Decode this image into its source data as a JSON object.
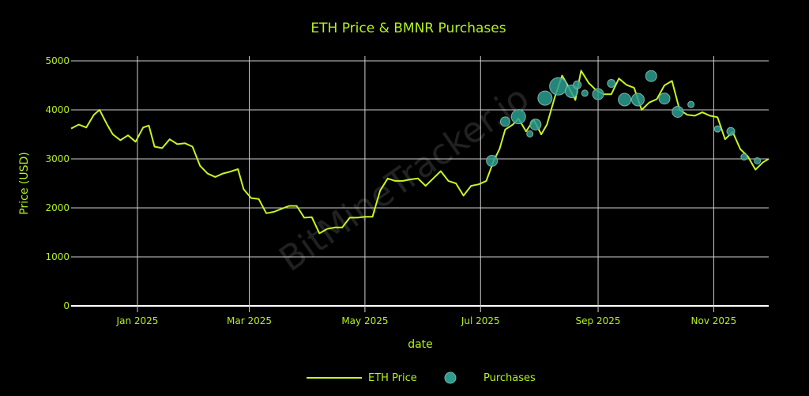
{
  "chart_data": {
    "type": "line",
    "title": "ETH Price & BMNR Purchases",
    "xlabel": "date",
    "ylabel": "Price (USD)",
    "ylim": [
      0,
      5000
    ],
    "yticks": [
      0,
      1000,
      2000,
      3000,
      4000,
      5000
    ],
    "xticks": [
      "Jan 2025",
      "Mar 2025",
      "May 2025",
      "Jul 2025",
      "Sep 2025",
      "Nov 2025"
    ],
    "x_range": [
      "2024-11-27",
      "2025-11-30"
    ],
    "grid": true,
    "legend_position": "bottom-center",
    "watermark": "BitMineTracker.io",
    "colors": {
      "background": "#000000",
      "line": "#c8f522",
      "text": "#b5f21a",
      "grid": "#d9d9d9",
      "bubble": "#2a9d8f"
    },
    "series": [
      {
        "name": "ETH Price",
        "kind": "line",
        "x": [
          "2024-11-27",
          "2024-12-01",
          "2024-12-05",
          "2024-12-09",
          "2024-12-12",
          "2024-12-16",
          "2024-12-19",
          "2024-12-23",
          "2024-12-27",
          "2024-12-31",
          "2025-01-04",
          "2025-01-07",
          "2025-01-10",
          "2025-01-14",
          "2025-01-18",
          "2025-01-22",
          "2025-01-26",
          "2025-01-30",
          "2025-02-03",
          "2025-02-07",
          "2025-02-11",
          "2025-02-15",
          "2025-02-19",
          "2025-02-23",
          "2025-02-26",
          "2025-03-02",
          "2025-03-06",
          "2025-03-10",
          "2025-03-14",
          "2025-03-18",
          "2025-03-22",
          "2025-03-26",
          "2025-03-30",
          "2025-04-03",
          "2025-04-07",
          "2025-04-11",
          "2025-04-15",
          "2025-04-19",
          "2025-04-23",
          "2025-04-27",
          "2025-05-01",
          "2025-05-05",
          "2025-05-09",
          "2025-05-13",
          "2025-05-17",
          "2025-05-21",
          "2025-05-25",
          "2025-05-29",
          "2025-06-02",
          "2025-06-06",
          "2025-06-10",
          "2025-06-14",
          "2025-06-18",
          "2025-06-22",
          "2025-06-26",
          "2025-06-30",
          "2025-07-04",
          "2025-07-08",
          "2025-07-11",
          "2025-07-14",
          "2025-07-18",
          "2025-07-21",
          "2025-07-25",
          "2025-07-29",
          "2025-08-02",
          "2025-08-05",
          "2025-08-09",
          "2025-08-13",
          "2025-08-16",
          "2025-08-20",
          "2025-08-23",
          "2025-08-27",
          "2025-08-31",
          "2025-09-04",
          "2025-09-08",
          "2025-09-12",
          "2025-09-16",
          "2025-09-20",
          "2025-09-24",
          "2025-09-28",
          "2025-10-02",
          "2025-10-06",
          "2025-10-10",
          "2025-10-14",
          "2025-10-18",
          "2025-10-22",
          "2025-10-26",
          "2025-10-30",
          "2025-11-03",
          "2025-11-07",
          "2025-11-11",
          "2025-11-15",
          "2025-11-19",
          "2025-11-23",
          "2025-11-27",
          "2025-11-30"
        ],
        "values": [
          3620,
          3700,
          3640,
          3900,
          4000,
          3700,
          3500,
          3380,
          3480,
          3350,
          3640,
          3680,
          3250,
          3220,
          3400,
          3300,
          3320,
          3250,
          2860,
          2700,
          2630,
          2700,
          2740,
          2790,
          2380,
          2200,
          2180,
          1890,
          1920,
          1980,
          2040,
          2040,
          1800,
          1810,
          1480,
          1570,
          1600,
          1600,
          1800,
          1800,
          1820,
          1820,
          2350,
          2600,
          2550,
          2550,
          2580,
          2600,
          2450,
          2600,
          2750,
          2550,
          2500,
          2250,
          2450,
          2480,
          2550,
          2970,
          3200,
          3600,
          3700,
          3820,
          3560,
          3800,
          3500,
          3700,
          4240,
          4700,
          4500,
          4200,
          4800,
          4550,
          4400,
          4320,
          4320,
          4640,
          4510,
          4450,
          4000,
          4150,
          4220,
          4500,
          4590,
          4000,
          3900,
          3880,
          3950,
          3880,
          3850,
          3400,
          3550,
          3200,
          3050,
          2780,
          2930,
          3000
        ]
      },
      {
        "name": "Purchases",
        "kind": "bubble",
        "points": [
          {
            "date": "2025-07-07",
            "price": 2960,
            "size": 7
          },
          {
            "date": "2025-07-14",
            "price": 3760,
            "size": 6
          },
          {
            "date": "2025-07-21",
            "price": 3860,
            "size": 9
          },
          {
            "date": "2025-07-27",
            "price": 3510,
            "size": 4
          },
          {
            "date": "2025-07-30",
            "price": 3700,
            "size": 7
          },
          {
            "date": "2025-08-04",
            "price": 4240,
            "size": 9
          },
          {
            "date": "2025-08-11",
            "price": 4480,
            "size": 11
          },
          {
            "date": "2025-08-18",
            "price": 4380,
            "size": 8
          },
          {
            "date": "2025-08-21",
            "price": 4510,
            "size": 5
          },
          {
            "date": "2025-08-25",
            "price": 4340,
            "size": 4
          },
          {
            "date": "2025-09-01",
            "price": 4320,
            "size": 7
          },
          {
            "date": "2025-09-08",
            "price": 4540,
            "size": 5
          },
          {
            "date": "2025-09-15",
            "price": 4210,
            "size": 8
          },
          {
            "date": "2025-09-22",
            "price": 4210,
            "size": 8
          },
          {
            "date": "2025-09-29",
            "price": 4690,
            "size": 7
          },
          {
            "date": "2025-10-06",
            "price": 4230,
            "size": 7
          },
          {
            "date": "2025-10-13",
            "price": 3960,
            "size": 7
          },
          {
            "date": "2025-10-20",
            "price": 4110,
            "size": 4
          },
          {
            "date": "2025-11-03",
            "price": 3610,
            "size": 4
          },
          {
            "date": "2025-11-10",
            "price": 3560,
            "size": 5
          },
          {
            "date": "2025-11-17",
            "price": 3040,
            "size": 4
          },
          {
            "date": "2025-11-24",
            "price": 2960,
            "size": 4
          }
        ]
      }
    ]
  },
  "legend": {
    "line_label": "ETH Price",
    "bubble_label": "Purchases"
  }
}
